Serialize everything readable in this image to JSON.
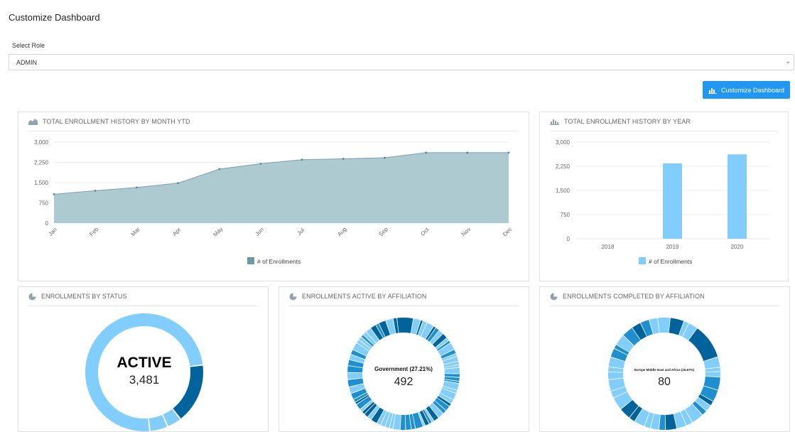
{
  "page": {
    "title": "Customize Dashboard",
    "select_role_label": "Select Role",
    "role_value": "ADMIN",
    "customize_button": "Customize Dashboard"
  },
  "colors": {
    "area_fill": "#aecad1",
    "area_line": "#7aa1ad",
    "bar": "#81cdfd",
    "light_blue": "#81cdfd",
    "mid_blue": "#1e8fd0",
    "dark_blue": "#00639b",
    "button": "#2196f3"
  },
  "charts": {
    "month": {
      "title": "TOTAL ENROLLMENT HISTORY BY MONTH YTD",
      "legend": "# of Enrollments"
    },
    "year": {
      "title": "TOTAL ENROLLMENT HISTORY BY YEAR",
      "legend": "# of Enrollments"
    },
    "status": {
      "title": "ENROLLMENTS BY STATUS",
      "center_label": "ACTIVE",
      "center_value": "3,481"
    },
    "active_aff": {
      "title": "ENROLLMENTS ACTIVE BY AFFILIATION",
      "center_label": "Government (27.21%)",
      "center_value": "492"
    },
    "completed_aff": {
      "title": "ENROLLMENTS COMPLETED BY AFFILIATION",
      "center_label": "Europe Middle East and Africa (16.67%)",
      "center_value": "80"
    }
  },
  "chart_data": [
    {
      "type": "area",
      "title": "TOTAL ENROLLMENT HISTORY BY MONTH YTD",
      "categories": [
        "Jan",
        "Feb",
        "Mar",
        "Apr",
        "May",
        "Jun",
        "Jul",
        "Aug",
        "Sep",
        "Oct",
        "Nov",
        "Dec"
      ],
      "yticks": [
        "3,000",
        "2,250",
        "1,500",
        "750",
        "0"
      ],
      "ylim": [
        0,
        3000
      ],
      "series": [
        {
          "name": "# of Enrollments",
          "values": [
            1070,
            1200,
            1320,
            1480,
            2000,
            2200,
            2350,
            2380,
            2420,
            2610,
            2610,
            2610
          ]
        }
      ],
      "legend_position": "bottom",
      "grid": true
    },
    {
      "type": "bar",
      "title": "TOTAL ENROLLMENT HISTORY BY YEAR",
      "categories": [
        "2018",
        "2019",
        "2020"
      ],
      "yticks": [
        "3,000",
        "2,250",
        "1,500",
        "750",
        "0"
      ],
      "ylim": [
        0,
        3000
      ],
      "series": [
        {
          "name": "# of Enrollments",
          "values": [
            0,
            2340,
            2620
          ]
        }
      ],
      "legend_position": "bottom",
      "grid": true
    },
    {
      "type": "pie",
      "title": "ENROLLMENTS BY STATUS",
      "slices_fraction": [
        0.745,
        0.165,
        0.04,
        0.05
      ],
      "slice_colors": [
        "#81cdfd",
        "#00639b",
        "#81cdfd",
        "#81cdfd"
      ],
      "highlighted": {
        "label": "ACTIVE",
        "value": 3481
      }
    },
    {
      "type": "pie",
      "title": "ENROLLMENTS ACTIVE BY AFFILIATION",
      "highlighted": {
        "label": "Government (27.21%)",
        "value": 492
      }
    },
    {
      "type": "pie",
      "title": "ENROLLMENTS COMPLETED BY AFFILIATION",
      "highlighted": {
        "label": "Europe Middle East and Africa (16.67%)",
        "value": 80
      }
    }
  ]
}
